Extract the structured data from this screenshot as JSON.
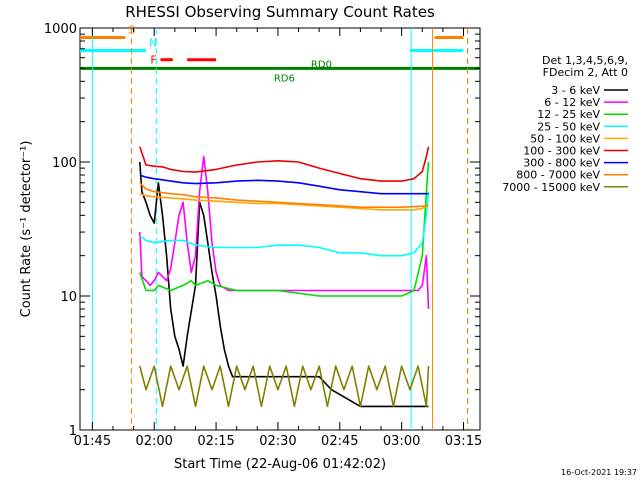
{
  "chart_data": {
    "type": "line",
    "title": "RHESSI Observing Summary Count Rates",
    "xlabel": "Start Time (22-Aug-06 01:42:02)",
    "ylabel": "Count Rate (s⁻¹ detector⁻¹)",
    "x_ticks": [
      "01:45",
      "02:00",
      "02:15",
      "02:30",
      "02:45",
      "03:00",
      "03:15"
    ],
    "x_tick_minutes": [
      105,
      120,
      135,
      150,
      165,
      180,
      195
    ],
    "xlim_minutes": [
      102.0,
      199.0
    ],
    "y_scale": "log",
    "ylim": [
      1,
      1000
    ],
    "y_ticks": [
      "1",
      "10",
      "100",
      "1000"
    ],
    "y_tick_values": [
      1,
      10,
      100,
      1000
    ],
    "legend_header": [
      "Det 1,3,4,5,6,9,",
      "FDecim 2, Att 0"
    ],
    "legend_placement": "right",
    "series": [
      {
        "name": "3 - 6 keV",
        "color": "#000000",
        "points": [
          [
            116.5,
            100
          ],
          [
            117,
            60
          ],
          [
            118,
            50
          ],
          [
            119,
            40
          ],
          [
            120,
            35
          ],
          [
            121,
            70
          ],
          [
            122,
            40
          ],
          [
            123,
            20
          ],
          [
            124,
            8
          ],
          [
            125,
            5
          ],
          [
            126,
            4
          ],
          [
            127,
            3
          ],
          [
            128,
            5
          ],
          [
            130,
            12
          ],
          [
            131,
            50
          ],
          [
            132,
            40
          ],
          [
            133,
            25
          ],
          [
            134,
            15
          ],
          [
            135,
            10
          ],
          [
            136,
            6
          ],
          [
            137,
            4
          ],
          [
            138,
            3
          ],
          [
            139,
            2.5
          ],
          [
            140,
            2.5
          ],
          [
            150,
            2.5
          ],
          [
            160,
            2.5
          ],
          [
            163,
            2
          ],
          [
            170,
            1.5
          ],
          [
            180,
            1.5
          ],
          [
            185,
            1.5
          ],
          [
            186.5,
            1.5
          ]
        ]
      },
      {
        "name": "6 - 12 keV",
        "color": "#ff00ff",
        "points": [
          [
            116.5,
            30
          ],
          [
            117,
            14
          ],
          [
            118,
            13
          ],
          [
            119,
            12
          ],
          [
            120,
            13
          ],
          [
            121,
            15
          ],
          [
            122,
            14
          ],
          [
            123,
            13
          ],
          [
            124,
            16
          ],
          [
            125,
            25
          ],
          [
            126,
            40
          ],
          [
            127,
            50
          ],
          [
            128,
            25
          ],
          [
            129,
            15
          ],
          [
            130,
            20
          ],
          [
            131,
            60
          ],
          [
            132,
            110
          ],
          [
            133,
            60
          ],
          [
            134,
            25
          ],
          [
            135,
            15
          ],
          [
            136,
            12
          ],
          [
            138,
            11
          ],
          [
            140,
            11
          ],
          [
            150,
            11
          ],
          [
            160,
            11
          ],
          [
            170,
            11
          ],
          [
            180,
            11
          ],
          [
            184,
            11
          ],
          [
            185,
            12
          ],
          [
            186,
            20
          ],
          [
            186.5,
            8
          ]
        ]
      },
      {
        "name": "12 - 25 keV",
        "color": "#00dd00",
        "points": [
          [
            116.5,
            15
          ],
          [
            118,
            11
          ],
          [
            120,
            11
          ],
          [
            121,
            12
          ],
          [
            124,
            11
          ],
          [
            127,
            12
          ],
          [
            129,
            13
          ],
          [
            130,
            12
          ],
          [
            133,
            13
          ],
          [
            135,
            12
          ],
          [
            140,
            11
          ],
          [
            150,
            11
          ],
          [
            160,
            10
          ],
          [
            165,
            10
          ],
          [
            170,
            10
          ],
          [
            175,
            10
          ],
          [
            180,
            10
          ],
          [
            183,
            11
          ],
          [
            185,
            20
          ],
          [
            186,
            60
          ],
          [
            186.5,
            100
          ]
        ]
      },
      {
        "name": "25 - 50 keV",
        "color": "#00ffff",
        "points": [
          [
            116.5,
            28
          ],
          [
            118,
            26
          ],
          [
            120,
            25
          ],
          [
            124,
            26
          ],
          [
            127,
            26
          ],
          [
            130,
            24
          ],
          [
            135,
            23
          ],
          [
            140,
            23
          ],
          [
            145,
            23
          ],
          [
            150,
            24
          ],
          [
            155,
            24
          ],
          [
            160,
            23
          ],
          [
            165,
            21
          ],
          [
            170,
            21
          ],
          [
            175,
            20
          ],
          [
            180,
            20
          ],
          [
            183,
            21
          ],
          [
            185,
            25
          ],
          [
            186,
            40
          ],
          [
            186.5,
            60
          ]
        ]
      },
      {
        "name": "50 - 100 keV",
        "color": "#ffa500",
        "points": [
          [
            116.5,
            58
          ],
          [
            118,
            56
          ],
          [
            120,
            55
          ],
          [
            124,
            54
          ],
          [
            127,
            53
          ],
          [
            130,
            52
          ],
          [
            135,
            51
          ],
          [
            140,
            50
          ],
          [
            145,
            49
          ],
          [
            150,
            49
          ],
          [
            155,
            48
          ],
          [
            160,
            47
          ],
          [
            165,
            46
          ],
          [
            170,
            45
          ],
          [
            175,
            44
          ],
          [
            180,
            44
          ],
          [
            183,
            44
          ],
          [
            185,
            45
          ],
          [
            186.5,
            48
          ]
        ]
      },
      {
        "name": "100 - 300 keV",
        "color": "#ee0000",
        "points": [
          [
            116.5,
            130
          ],
          [
            118,
            95
          ],
          [
            120,
            93
          ],
          [
            122,
            92
          ],
          [
            124,
            88
          ],
          [
            127,
            85
          ],
          [
            130,
            84
          ],
          [
            135,
            88
          ],
          [
            140,
            95
          ],
          [
            145,
            100
          ],
          [
            150,
            102
          ],
          [
            155,
            100
          ],
          [
            160,
            90
          ],
          [
            165,
            82
          ],
          [
            170,
            75
          ],
          [
            175,
            72
          ],
          [
            180,
            72
          ],
          [
            183,
            75
          ],
          [
            185,
            85
          ],
          [
            186,
            110
          ],
          [
            186.5,
            130
          ]
        ]
      },
      {
        "name": "300 - 800 keV",
        "color": "#0000ff",
        "points": [
          [
            116.5,
            80
          ],
          [
            118,
            77
          ],
          [
            120,
            75
          ],
          [
            124,
            72
          ],
          [
            127,
            70
          ],
          [
            130,
            69
          ],
          [
            135,
            70
          ],
          [
            140,
            72
          ],
          [
            145,
            73
          ],
          [
            150,
            72
          ],
          [
            155,
            70
          ],
          [
            160,
            66
          ],
          [
            165,
            62
          ],
          [
            170,
            60
          ],
          [
            175,
            58
          ],
          [
            180,
            58
          ],
          [
            186.5,
            58
          ]
        ]
      },
      {
        "name": "800 - 7000 keV",
        "color": "#ff8000",
        "points": [
          [
            116.5,
            70
          ],
          [
            118,
            63
          ],
          [
            120,
            60
          ],
          [
            124,
            58
          ],
          [
            127,
            57
          ],
          [
            130,
            55
          ],
          [
            135,
            54
          ],
          [
            140,
            52
          ],
          [
            145,
            51
          ],
          [
            150,
            50
          ],
          [
            155,
            49
          ],
          [
            160,
            48
          ],
          [
            165,
            47
          ],
          [
            170,
            46
          ],
          [
            175,
            46
          ],
          [
            180,
            46
          ],
          [
            186.5,
            47
          ]
        ]
      },
      {
        "name": "7000 - 15000 keV",
        "color": "#808000",
        "points": [
          [
            116.5,
            3
          ],
          [
            118,
            2
          ],
          [
            120,
            3
          ],
          [
            122,
            1.5
          ],
          [
            124,
            3
          ],
          [
            126,
            2
          ],
          [
            128,
            3
          ],
          [
            130,
            1.5
          ],
          [
            132,
            3
          ],
          [
            134,
            2
          ],
          [
            136,
            3
          ],
          [
            138,
            1.5
          ],
          [
            140,
            3
          ],
          [
            142,
            2
          ],
          [
            144,
            3
          ],
          [
            146,
            1.5
          ],
          [
            148,
            3
          ],
          [
            150,
            2
          ],
          [
            152,
            3
          ],
          [
            154,
            1.5
          ],
          [
            156,
            3
          ],
          [
            158,
            2
          ],
          [
            160,
            3
          ],
          [
            162,
            1.5
          ],
          [
            164,
            3
          ],
          [
            166,
            2
          ],
          [
            168,
            3
          ],
          [
            170,
            1.5
          ],
          [
            172,
            3
          ],
          [
            174,
            2
          ],
          [
            176,
            3
          ],
          [
            178,
            1.5
          ],
          [
            180,
            3
          ],
          [
            182,
            2
          ],
          [
            184,
            3
          ],
          [
            186,
            1.5
          ],
          [
            186.5,
            3
          ]
        ]
      }
    ],
    "attenuator_line": {
      "label": "RD0",
      "label2": "RD6",
      "value": 500,
      "color": "#008000"
    },
    "flags": [
      {
        "label": "S",
        "color": "#ff8000",
        "segments": [
          [
            102.0,
            113.0
          ],
          [
            188,
            195
          ]
        ],
        "y": 850
      },
      {
        "label": "N",
        "color": "#00ffff",
        "segments": [
          [
            102.0,
            118.0
          ],
          [
            182,
            195
          ]
        ],
        "y": 680
      },
      {
        "label": "F",
        "color": "#ff0000",
        "segments": [
          [
            121.5,
            124.5
          ],
          [
            128,
            135
          ]
        ],
        "y": 580
      }
    ],
    "vlines": [
      {
        "x": 105.0,
        "color": "#00ffff",
        "style": "solid"
      },
      {
        "x": 114.5,
        "color": "#ff8000",
        "style": "dashed"
      },
      {
        "x": 120.5,
        "color": "#00ffff",
        "style": "dashed"
      },
      {
        "x": 182.3,
        "color": "#00ffff",
        "style": "solid"
      },
      {
        "x": 187.5,
        "color": "#ff8000",
        "style": "solid"
      },
      {
        "x": 196.0,
        "color": "#00ffff",
        "style": "dashed"
      },
      {
        "x": 196.0,
        "color": "#ff8000",
        "style": "dashed"
      }
    ],
    "footer_date": "16-Oct-2021 19:37",
    "grid": false
  }
}
